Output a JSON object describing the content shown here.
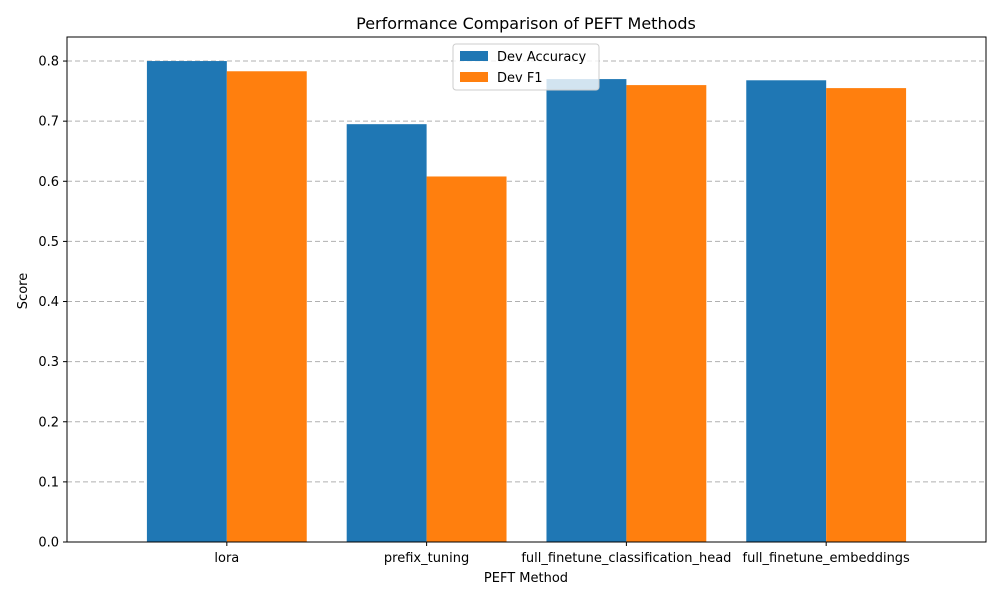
{
  "chart_data": {
    "type": "bar",
    "title": "Performance Comparison of PEFT Methods",
    "xlabel": "PEFT Method",
    "ylabel": "Score",
    "categories": [
      "lora",
      "prefix_tuning",
      "full_finetune_classification_head",
      "full_finetune_embeddings"
    ],
    "series": [
      {
        "name": "Dev Accuracy",
        "color": "#1f77b4",
        "values": [
          0.8,
          0.695,
          0.77,
          0.768
        ]
      },
      {
        "name": "Dev F1",
        "color": "#ff7f0e",
        "values": [
          0.783,
          0.608,
          0.76,
          0.755
        ]
      }
    ],
    "ylim": [
      0,
      0.84
    ],
    "yticks": [
      "0.0",
      "0.1",
      "0.2",
      "0.3",
      "0.4",
      "0.5",
      "0.6",
      "0.7",
      "0.8"
    ],
    "grid": "horizontal dashed",
    "legend_position": "top-center"
  }
}
